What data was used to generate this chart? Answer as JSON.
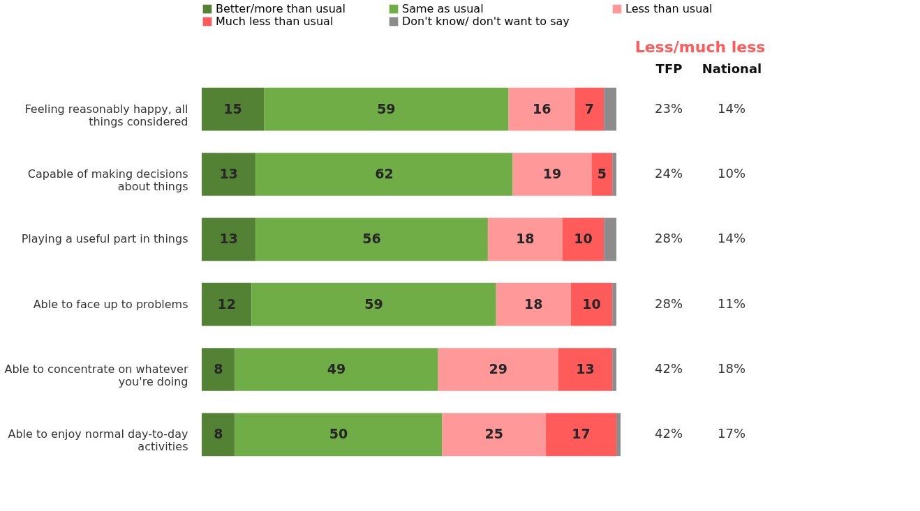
{
  "chart_data": [
    {
      "type": "bar",
      "orientation": "horizontal",
      "stacked": true,
      "legend": "top",
      "categories": [
        "Feeling reasonably happy, all things considered",
        "Capable of making decisions about things",
        "Playing a useful part in things",
        "Able to face up to problems",
        "Able to concentrate on whatever you're doing",
        "Able to enjoy normal day-to-day activities"
      ],
      "series": [
        {
          "name": "Better/more than usual",
          "color": "#548235",
          "values": [
            15,
            13,
            13,
            12,
            8,
            8
          ],
          "value_labels": [
            "15",
            "13",
            "13",
            "12",
            "8",
            "8"
          ]
        },
        {
          "name": "Same as usual",
          "color": "#70ad47",
          "values": [
            59,
            62,
            56,
            59,
            49,
            50
          ],
          "value_labels": [
            "59",
            "62",
            "56",
            "59",
            "49",
            "50"
          ]
        },
        {
          "name": "Less than usual",
          "color": "#ff9999",
          "values": [
            16,
            19,
            18,
            18,
            29,
            25
          ],
          "value_labels": [
            "16",
            "19",
            "18",
            "18",
            "29",
            "25"
          ]
        },
        {
          "name": "Much less than usual",
          "color": "#ff5b5b",
          "values": [
            7,
            5,
            10,
            10,
            13,
            17
          ],
          "value_labels": [
            "7",
            "5",
            "10",
            "10",
            "13",
            "17"
          ]
        },
        {
          "name": "Don't know/ don't want to say",
          "color": "#8c8c8c",
          "values": [
            3,
            1,
            3,
            1,
            1,
            1
          ],
          "value_labels": [
            null,
            null,
            null,
            null,
            null,
            null
          ]
        }
      ]
    },
    {
      "type": "other",
      "title": "Less/much less",
      "categories": [
        "TFP",
        "National"
      ],
      "annotations": [
        "23%",
        "14%",
        "24%",
        "10%",
        "28%",
        "14%",
        "28%",
        "11%",
        "42%",
        "18%",
        "42%",
        "17%"
      ]
    }
  ]
}
